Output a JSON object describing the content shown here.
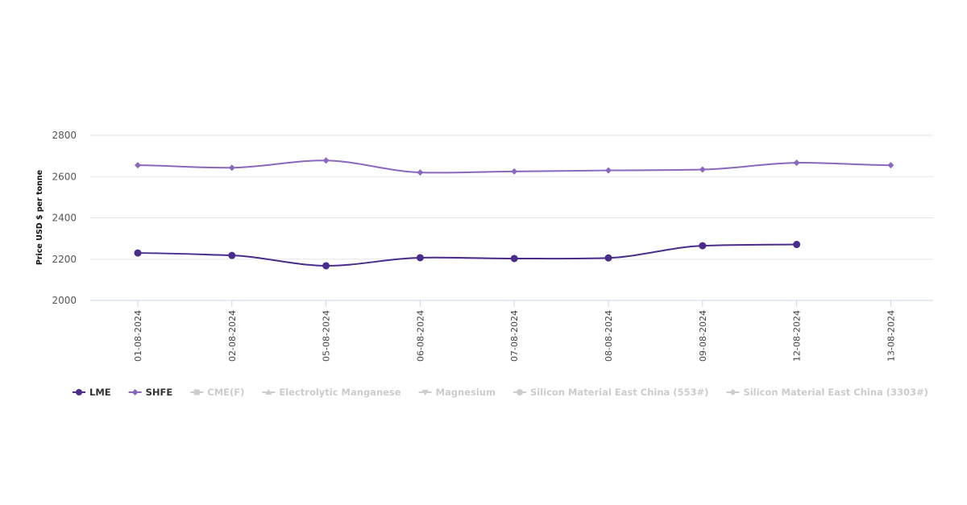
{
  "chart_data": {
    "type": "line",
    "title": "",
    "xlabel": "",
    "ylabel": "Price USD $ per tonne",
    "ylim": [
      2000,
      2800
    ],
    "yticks": [
      2000,
      2200,
      2400,
      2600,
      2800
    ],
    "grid": true,
    "legend_position": "bottom-left",
    "categories": [
      "01-08-2024",
      "02-08-2024",
      "05-08-2024",
      "06-08-2024",
      "07-08-2024",
      "08-08-2024",
      "09-08-2024",
      "12-08-2024",
      "13-08-2024"
    ],
    "series": [
      {
        "name": "LME",
        "color": "#4a2c8c",
        "marker": "circle",
        "values": [
          2230,
          2218,
          2168,
          2207,
          2203,
          2206,
          2265,
          2271,
          null
        ]
      },
      {
        "name": "SHFE",
        "color": "#8a68bd",
        "marker": "diamond",
        "values": [
          2655,
          2643,
          2678,
          2620,
          2625,
          2630,
          2634,
          2667,
          2655
        ]
      }
    ],
    "legend": [
      {
        "name": "LME",
        "active": true,
        "color": "#4a2c8c",
        "marker": "circle"
      },
      {
        "name": "SHFE",
        "active": true,
        "color": "#8a68bd",
        "marker": "diamond"
      },
      {
        "name": "CME(F)",
        "active": false,
        "color": "#cccccc",
        "marker": "square"
      },
      {
        "name": "Electrolytic Manganese",
        "active": false,
        "color": "#cccccc",
        "marker": "triangle"
      },
      {
        "name": "Magnesium",
        "active": false,
        "color": "#cccccc",
        "marker": "triangle-down"
      },
      {
        "name": "Silicon Material East China (553#)",
        "active": false,
        "color": "#cccccc",
        "marker": "circle"
      },
      {
        "name": "Silicon Material East China (3303#)",
        "active": false,
        "color": "#cccccc",
        "marker": "diamond"
      }
    ]
  }
}
